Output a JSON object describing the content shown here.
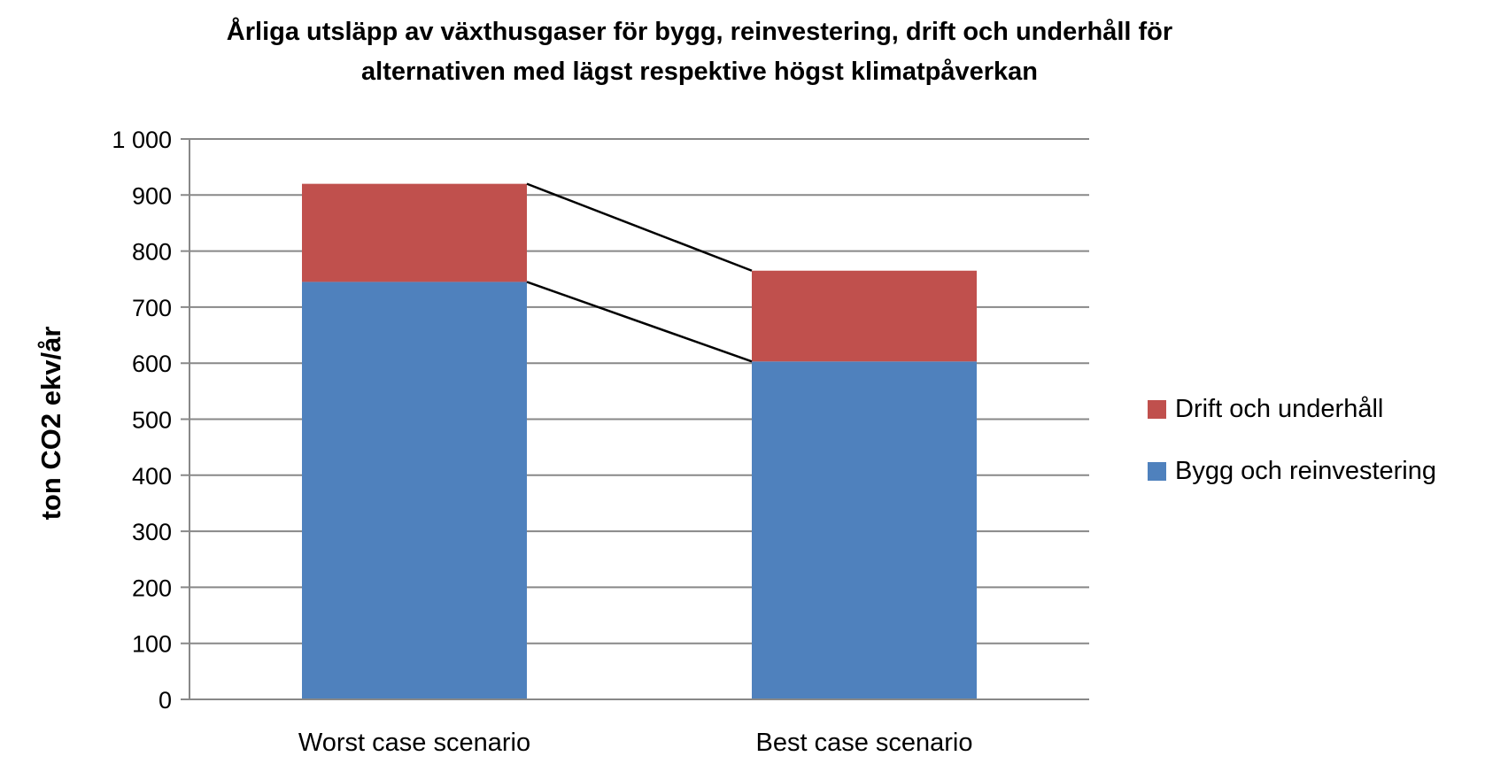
{
  "chart_data": {
    "type": "bar",
    "stacked": true,
    "title_lines": [
      "Årliga utsläpp av växthusgaser för bygg, reinvestering, drift och underhåll för",
      "alternativen med lägst respektive högst klimatpåverkan"
    ],
    "xlabel": "",
    "ylabel": "ton CO2 ekv/år",
    "ylim": [
      0,
      1000
    ],
    "yticks": [
      "0",
      "100",
      "200",
      "300",
      "400",
      "500",
      "600",
      "700",
      "800",
      "900",
      "1 000"
    ],
    "categories": [
      "Worst case scenario",
      "Best case scenario"
    ],
    "series": [
      {
        "name": "Bygg och reinvestering",
        "values": [
          745,
          603
        ],
        "color": "#4F81BD"
      },
      {
        "name": "Drift och underhåll",
        "values": [
          175,
          162
        ],
        "color": "#C0504D"
      }
    ],
    "grid": true,
    "legend_position": "right",
    "legend_order": [
      "Drift och underhåll",
      "Bygg och reinvestering"
    ],
    "connector_lines": true
  }
}
